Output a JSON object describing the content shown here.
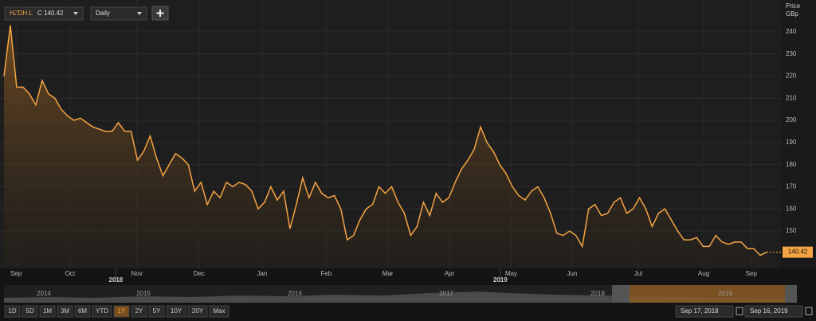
{
  "toolbar": {
    "symbol": "HZDH.L",
    "quote": "C 140.42",
    "interval": "Daily"
  },
  "chart_data": {
    "type": "line",
    "color": "#f5a443",
    "values": [
      220,
      243,
      215,
      215,
      212,
      207,
      218,
      212,
      210,
      205,
      202,
      200,
      201,
      199,
      197,
      196,
      195,
      195,
      199,
      195,
      195,
      182,
      186,
      193,
      183,
      175,
      180,
      185,
      183,
      180,
      168,
      172,
      162,
      168,
      165,
      172,
      170,
      172,
      171,
      168,
      160,
      163,
      170,
      164,
      168,
      151,
      162,
      174,
      165,
      172,
      167,
      165,
      166,
      160,
      146,
      148,
      155,
      160,
      162,
      170,
      167,
      170,
      163,
      158,
      148,
      152,
      163,
      157,
      167,
      163,
      165,
      172,
      178,
      182,
      187,
      197,
      190,
      186,
      180,
      176,
      170,
      166,
      164,
      168,
      170,
      165,
      158,
      149,
      148,
      150,
      148,
      143,
      160,
      162,
      157,
      158,
      163,
      165,
      158,
      160,
      165,
      160,
      152,
      158,
      160,
      155,
      150,
      146,
      146,
      147,
      143,
      143,
      148,
      145,
      144,
      145,
      145,
      142,
      142,
      139,
      140.42
    ],
    "xlim": [
      0,
      120
    ],
    "ylim": [
      133.8,
      252.6
    ],
    "yticks": [
      150,
      160,
      170,
      180,
      190,
      200,
      210,
      220,
      230,
      240
    ],
    "xticks": [
      {
        "value": 1.9,
        "label": "Sep"
      },
      {
        "value": 10.4,
        "label": "Oct"
      },
      {
        "value": 20.9,
        "label": "Nov"
      },
      {
        "value": 30.7,
        "label": "Dec"
      },
      {
        "value": 40.6,
        "label": "Jan"
      },
      {
        "value": 50.7,
        "label": "Feb"
      },
      {
        "value": 60.4,
        "label": "Mar"
      },
      {
        "value": 70.1,
        "label": "Apr"
      },
      {
        "value": 79.8,
        "label": "May"
      },
      {
        "value": 89.4,
        "label": "Jun"
      },
      {
        "value": 99.8,
        "label": "Jul"
      },
      {
        "value": 110.1,
        "label": "Aug"
      },
      {
        "value": 117.6,
        "label": "Sep"
      }
    ],
    "year_ticks": [
      {
        "value": 17.6,
        "label": "2018"
      },
      {
        "value": 78.1,
        "label": "2019"
      }
    ],
    "y_axis_title": "Price",
    "y_axis_unit": "GBp",
    "grid": true
  },
  "navigator": {
    "years": [
      "2014",
      "2015",
      "2016",
      "2017",
      "2018",
      "2019"
    ]
  },
  "range_buttons": [
    "1D",
    "5D",
    "1M",
    "3M",
    "6M",
    "YTD",
    "1Y",
    "2Y",
    "5Y",
    "10Y",
    "20Y",
    "Max"
  ],
  "active_button": 6,
  "date_range": [
    "Sep 17, 2018",
    "Sep 16, 2019"
  ]
}
